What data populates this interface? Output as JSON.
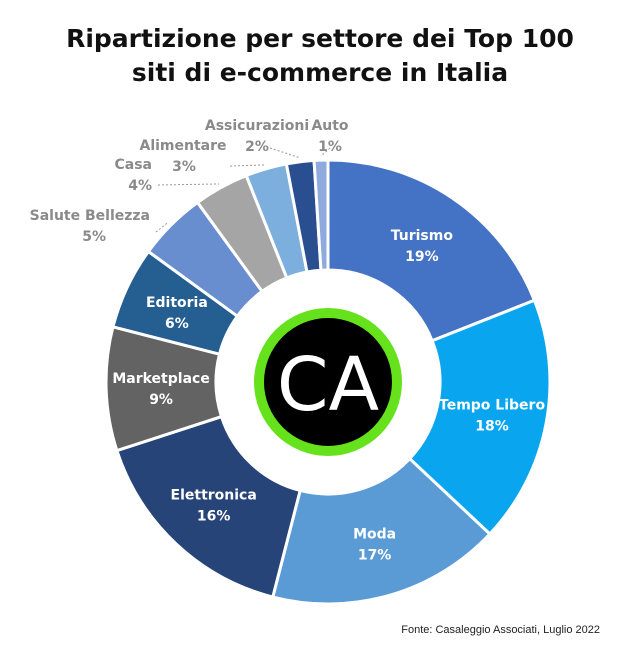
{
  "title_line1": "Ripartizione per settore dei Top 100",
  "title_line2": "siti di e-commerce in Italia",
  "source": "Fonte: Casaleggio Associati, Luglio 2022",
  "logo_text": "CA",
  "colors": {
    "logo_ring": "#66e21c",
    "logo_fill": "#000000",
    "label_inside": "#ffffff",
    "label_outside": "#8a8a8a"
  },
  "chart_data": {
    "type": "pie",
    "variant": "donut",
    "slices": [
      {
        "label": "Turismo",
        "value": 19,
        "display": "19%",
        "color": "#4472c4"
      },
      {
        "label": "Tempo Libero",
        "value": 18,
        "display": "18%",
        "color": "#0aa5ef"
      },
      {
        "label": "Moda",
        "value": 17,
        "display": "17%",
        "color": "#5b9bd5"
      },
      {
        "label": "Elettronica",
        "value": 16,
        "display": "16%",
        "color": "#264478"
      },
      {
        "label": "Marketplace",
        "value": 9,
        "display": "9%",
        "color": "#636363"
      },
      {
        "label": "Editoria",
        "value": 6,
        "display": "6%",
        "color": "#255e91"
      },
      {
        "label": "Salute Bellezza",
        "value": 5,
        "display": "5%",
        "color": "#698ed0"
      },
      {
        "label": "Casa",
        "value": 4,
        "display": "4%",
        "color": "#a5a5a5"
      },
      {
        "label": "Alimentare",
        "value": 3,
        "display": "3%",
        "color": "#7cafdd"
      },
      {
        "label": "Assicurazioni",
        "value": 2,
        "display": "2%",
        "color": "#2a4f91"
      },
      {
        "label": "Auto",
        "value": 1,
        "display": "1%",
        "color": "#8faadc"
      }
    ]
  }
}
